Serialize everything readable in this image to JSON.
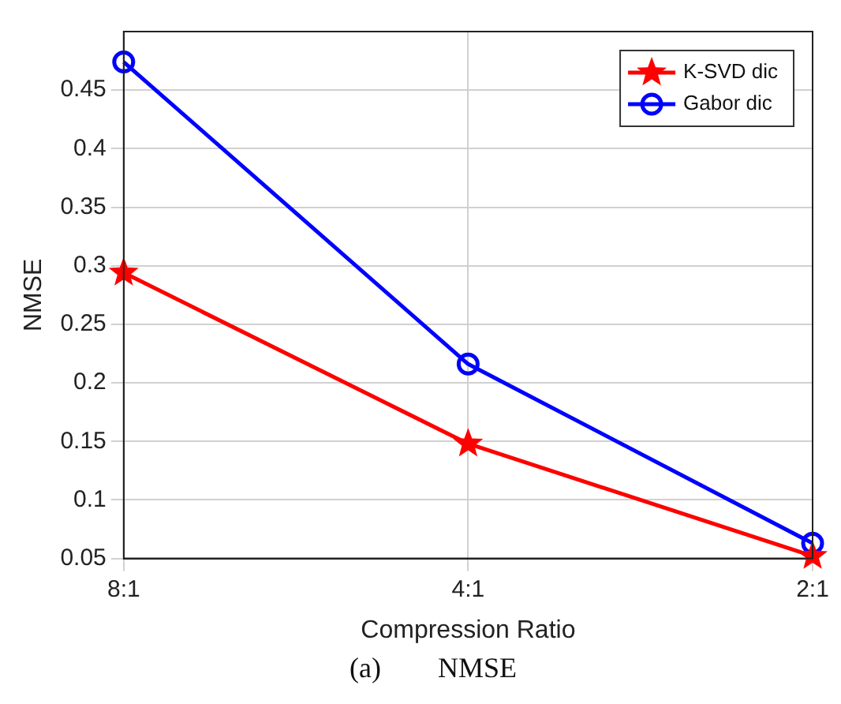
{
  "chart_data": {
    "type": "line",
    "xlabel": "Compression Ratio",
    "ylabel": "NMSE",
    "categories": [
      "8:1",
      "4:1",
      "2:1"
    ],
    "series": [
      {
        "name": "K-SVD dic",
        "color": "#ff0000",
        "marker": "star",
        "values": [
          0.294,
          0.148,
          0.052
        ]
      },
      {
        "name": "Gabor dic",
        "color": "#0000ff",
        "marker": "circle",
        "values": [
          0.474,
          0.216,
          0.063
        ]
      }
    ],
    "ylim": [
      0.05,
      0.5
    ],
    "yticks": [
      0.05,
      0.1,
      0.15,
      0.2,
      0.25,
      0.3,
      0.35,
      0.4,
      0.45
    ],
    "grid": true,
    "legend": "top right",
    "line_style": "solid",
    "annotations": [
      "(a)        NMSE"
    ]
  }
}
